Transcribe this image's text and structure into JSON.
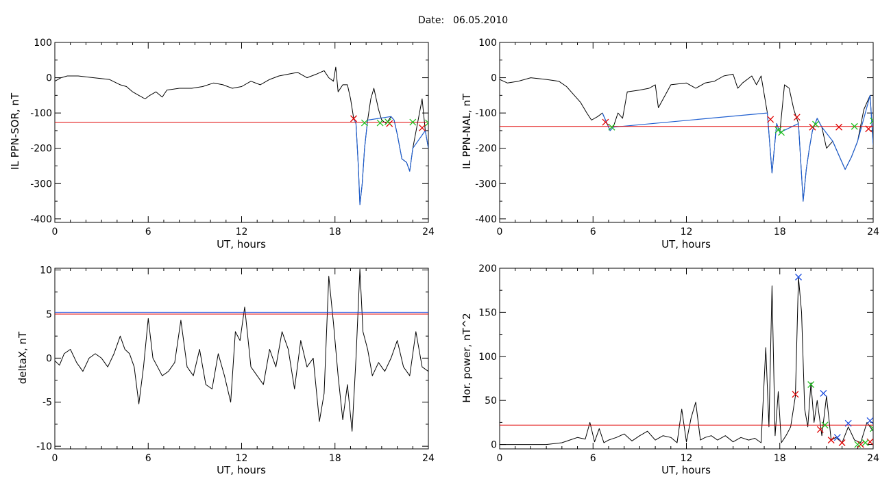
{
  "page": {
    "title_label": "Date:",
    "title_date": "06.05.2010"
  },
  "colors": {
    "trace": "#000000",
    "threshold": "#e00000",
    "highlight": "#1f5fd0",
    "marker_red": "#e00000",
    "marker_green": "#22c022",
    "marker_blue": "#2050e0"
  },
  "chart_data": [
    {
      "type": "line",
      "id": "tl",
      "xlabel": "UT, hours",
      "ylabel": "IL PPN-SOR, nT",
      "xlim": [
        0,
        24
      ],
      "ylim": [
        -410,
        100
      ],
      "xticks": [
        0,
        6,
        12,
        18,
        24
      ],
      "yticks": [
        100,
        0,
        -100,
        -200,
        -300,
        -400
      ],
      "grid": false,
      "series": [
        {
          "role": "trace",
          "x": [
            0,
            0.4,
            0.8,
            1.5,
            2.5,
            3.5,
            4.2,
            4.6,
            5.0,
            5.4,
            5.8,
            6.1,
            6.5,
            6.9,
            7.2,
            8.0,
            8.8,
            9.5,
            10.2,
            10.8,
            11.4,
            12.0,
            12.6,
            13.2,
            13.8,
            14.4,
            15.0,
            15.6,
            16.2,
            16.8,
            17.3,
            17.6,
            17.9,
            18.05,
            18.2,
            18.5,
            18.8,
            19.0,
            19.2,
            19.35,
            19.5,
            19.6,
            19.75,
            19.9,
            20.1,
            20.3,
            20.5,
            20.8,
            21.0,
            21.3,
            21.6,
            21.8,
            22.0,
            22.3,
            22.6,
            22.8,
            23.0,
            23.3,
            23.6,
            23.8,
            24
          ],
          "y": [
            -10,
            0,
            5,
            5,
            0,
            -5,
            -20,
            -25,
            -40,
            -50,
            -60,
            -50,
            -40,
            -55,
            -35,
            -30,
            -30,
            -25,
            -15,
            -20,
            -30,
            -25,
            -10,
            -20,
            -5,
            5,
            10,
            15,
            0,
            10,
            20,
            0,
            -10,
            30,
            -40,
            -20,
            -20,
            -60,
            -115,
            -130,
            -250,
            -360,
            -300,
            -200,
            -120,
            -60,
            -30,
            -90,
            -120,
            -130,
            -110,
            -120,
            -160,
            -230,
            -240,
            -265,
            -200,
            -130,
            -60,
            -150,
            -200
          ]
        },
        {
          "role": "highlight",
          "x": [
            19.2,
            19.35,
            19.5,
            19.6,
            19.75,
            19.9,
            20.1,
            21.6,
            21.8,
            22.0,
            22.3,
            22.6,
            22.8,
            23.0,
            23.8,
            24
          ],
          "y": [
            -115,
            -130,
            -250,
            -360,
            -300,
            -200,
            -120,
            -110,
            -120,
            -160,
            -230,
            -240,
            -265,
            -200,
            -150,
            -200
          ]
        },
        {
          "role": "threshold",
          "y": -126
        },
        {
          "role": "markers_red",
          "x": [
            19.2,
            21.5,
            23.6
          ],
          "y": [
            -116,
            -130,
            -142
          ]
        },
        {
          "role": "markers_green",
          "x": [
            19.9,
            20.9,
            21.4,
            23.0,
            24.0
          ],
          "y": [
            -128,
            -128,
            -125,
            -126,
            -128
          ]
        }
      ]
    },
    {
      "type": "line",
      "id": "tr",
      "xlabel": "UT, hours",
      "ylabel": "IL PPN-NAL, nT",
      "xlim": [
        0,
        24
      ],
      "ylim": [
        -410,
        100
      ],
      "xticks": [
        0,
        6,
        12,
        18,
        24
      ],
      "yticks": [
        100,
        0,
        -100,
        -200,
        -300,
        -400
      ],
      "grid": false,
      "series": [
        {
          "role": "trace",
          "x": [
            0,
            0.5,
            1.2,
            2.0,
            3.0,
            3.8,
            4.3,
            4.8,
            5.2,
            5.6,
            5.9,
            6.3,
            6.6,
            6.9,
            7.1,
            7.3,
            7.6,
            7.9,
            8.2,
            9.0,
            9.6,
            10.0,
            10.2,
            11.0,
            12.0,
            12.6,
            13.2,
            13.8,
            14.4,
            15.0,
            15.3,
            15.6,
            16.2,
            16.5,
            16.8,
            17.2,
            17.5,
            17.8,
            18.0,
            18.3,
            18.6,
            18.9,
            19.2,
            19.5,
            19.7,
            19.9,
            20.1,
            20.4,
            20.7,
            21.0,
            21.4,
            21.8,
            22.2,
            22.6,
            23.0,
            23.4,
            23.8,
            24
          ],
          "y": [
            -5,
            -15,
            -10,
            0,
            -5,
            -10,
            -25,
            -50,
            -70,
            -100,
            -120,
            -110,
            -100,
            -130,
            -150,
            -140,
            -100,
            -115,
            -40,
            -35,
            -30,
            -20,
            -85,
            -20,
            -15,
            -30,
            -15,
            -10,
            5,
            10,
            -30,
            -15,
            5,
            -20,
            5,
            -100,
            -270,
            -130,
            -155,
            -20,
            -30,
            -90,
            -130,
            -350,
            -260,
            -200,
            -150,
            -115,
            -140,
            -200,
            -180,
            -220,
            -260,
            -225,
            -180,
            -90,
            -50,
            -190
          ]
        },
        {
          "role": "highlight",
          "x": [
            6.6,
            6.9,
            7.1,
            7.3,
            17.2,
            17.5,
            17.8,
            18.0,
            19.2,
            19.5,
            19.7,
            19.9,
            20.1,
            20.4,
            20.7,
            21.4,
            21.8,
            22.2,
            22.6,
            23.0,
            23.8,
            24
          ],
          "y": [
            -100,
            -130,
            -150,
            -140,
            -100,
            -270,
            -130,
            -155,
            -130,
            -350,
            -260,
            -200,
            -150,
            -115,
            -140,
            -180,
            -220,
            -260,
            -225,
            -180,
            -50,
            -190
          ]
        },
        {
          "role": "threshold",
          "y": -138
        },
        {
          "role": "markers_red",
          "x": [
            6.8,
            17.4,
            19.1,
            20.1,
            21.8,
            23.7
          ],
          "y": [
            -126,
            -118,
            -112,
            -140,
            -140,
            -145
          ]
        },
        {
          "role": "markers_green",
          "x": [
            7.2,
            17.9,
            18.1,
            20.3,
            22.8,
            24.0
          ],
          "y": [
            -140,
            -148,
            -155,
            -132,
            -138,
            -122
          ]
        }
      ]
    },
    {
      "type": "line",
      "id": "bl",
      "xlabel": "UT, hours",
      "ylabel": "deltaX, nT",
      "xlim": [
        0,
        24
      ],
      "ylim": [
        -10.3,
        10.2
      ],
      "xticks": [
        0,
        6,
        12,
        18,
        24
      ],
      "yticks": [
        10,
        5,
        0,
        -5,
        -10
      ],
      "grid": false,
      "series": [
        {
          "role": "trace",
          "x": [
            0,
            0.3,
            0.6,
            1.0,
            1.4,
            1.8,
            2.2,
            2.6,
            3.0,
            3.4,
            3.8,
            4.2,
            4.5,
            4.8,
            5.1,
            5.4,
            5.7,
            6.0,
            6.3,
            6.6,
            6.9,
            7.3,
            7.7,
            8.1,
            8.5,
            8.9,
            9.3,
            9.7,
            10.1,
            10.5,
            10.9,
            11.3,
            11.6,
            11.9,
            12.2,
            12.6,
            13.0,
            13.4,
            13.8,
            14.2,
            14.6,
            15.0,
            15.4,
            15.8,
            16.2,
            16.6,
            17.0,
            17.3,
            17.6,
            17.9,
            18.2,
            18.5,
            18.8,
            19.1,
            19.35,
            19.6,
            19.8,
            20.1,
            20.4,
            20.8,
            21.2,
            21.6,
            22.0,
            22.4,
            22.8,
            23.2,
            23.6,
            24
          ],
          "y": [
            -0.3,
            -0.8,
            0.5,
            1.0,
            -0.5,
            -1.5,
            0.0,
            0.5,
            0.0,
            -1.0,
            0.5,
            2.5,
            1.0,
            0.5,
            -1.0,
            -5.2,
            -1.0,
            4.5,
            0.0,
            -1.0,
            -2.0,
            -1.5,
            -0.5,
            4.3,
            -1.0,
            -2.0,
            1.0,
            -3.0,
            -3.5,
            0.5,
            -2.0,
            -5.0,
            3.0,
            2.0,
            5.8,
            -1.0,
            -2.0,
            -3.0,
            1.0,
            -1.0,
            3.0,
            1.0,
            -3.5,
            2.0,
            -1.0,
            0.0,
            -7.2,
            -4.0,
            9.3,
            4.0,
            -2.0,
            -7.0,
            -3.0,
            -8.3,
            0.0,
            10.1,
            3.0,
            1.0,
            -2.0,
            -0.5,
            -1.5,
            0.0,
            2.0,
            -1.0,
            -2.0,
            3.0,
            -1.0,
            -1.5
          ]
        },
        {
          "role": "threshold",
          "y": 5.0
        },
        {
          "role": "threshold_blue",
          "y": 5.2
        }
      ]
    },
    {
      "type": "line",
      "id": "br",
      "xlabel": "UT, hours",
      "ylabel": "Hor. power, nT^2",
      "xlim": [
        0,
        24
      ],
      "ylim": [
        -5,
        200
      ],
      "xticks": [
        0,
        6,
        12,
        18,
        24
      ],
      "yticks": [
        200,
        150,
        100,
        50,
        0
      ],
      "grid": false,
      "series": [
        {
          "role": "trace",
          "x": [
            0,
            1.0,
            2.0,
            3.0,
            4.0,
            4.5,
            5.0,
            5.5,
            5.8,
            6.1,
            6.4,
            6.7,
            7.0,
            7.5,
            8.0,
            8.5,
            9.0,
            9.5,
            10.0,
            10.5,
            11.0,
            11.4,
            11.7,
            12.0,
            12.3,
            12.6,
            12.9,
            13.2,
            13.6,
            14.0,
            14.5,
            15.0,
            15.5,
            16.0,
            16.4,
            16.8,
            17.1,
            17.3,
            17.5,
            17.7,
            17.9,
            18.1,
            18.4,
            18.7,
            19.0,
            19.2,
            19.4,
            19.6,
            19.8,
            20.0,
            20.2,
            20.4,
            20.7,
            21.0,
            21.3,
            21.6,
            22.0,
            22.4,
            22.8,
            23.2,
            23.6,
            24
          ],
          "y": [
            0,
            0,
            0,
            0,
            2,
            5,
            8,
            6,
            25,
            3,
            18,
            2,
            5,
            8,
            12,
            4,
            10,
            15,
            5,
            10,
            8,
            2,
            40,
            3,
            30,
            48,
            5,
            8,
            10,
            5,
            10,
            3,
            8,
            5,
            7,
            2,
            110,
            20,
            180,
            10,
            60,
            2,
            10,
            20,
            55,
            190,
            150,
            40,
            20,
            70,
            25,
            50,
            10,
            55,
            5,
            8,
            2,
            20,
            5,
            2,
            25,
            15
          ]
        },
        {
          "role": "threshold",
          "y": 22
        },
        {
          "role": "markers_red",
          "x": [
            19.0,
            20.6,
            21.3,
            22.0,
            23.2,
            23.8
          ],
          "y": [
            57,
            17,
            5,
            2,
            0,
            3
          ]
        },
        {
          "role": "markers_green",
          "x": [
            20.0,
            20.9,
            23.0,
            23.5,
            24.0
          ],
          "y": [
            68,
            22,
            0,
            2,
            18
          ]
        },
        {
          "role": "markers_blue",
          "x": [
            19.2,
            20.8,
            21.7,
            22.4,
            23.8
          ],
          "y": [
            190,
            58,
            8,
            24,
            27
          ]
        }
      ]
    }
  ]
}
